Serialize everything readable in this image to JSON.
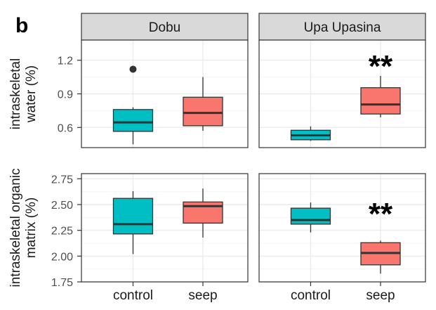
{
  "figure": {
    "panel_letter": "b",
    "facets": [
      "Dobu",
      "Upa Upasina"
    ],
    "row_labels": [
      [
        "intraskeletal",
        "water (%)"
      ],
      [
        "intraskeletal organic",
        "matrix (%)"
      ]
    ],
    "x_categories": [
      "control",
      "seep"
    ],
    "colors": {
      "control": "#00BFC4",
      "seep": "#F8766D",
      "strip": "#d9d9d9",
      "grid_major": "#ebebeb",
      "grid_minor": "#f5f5f5",
      "panel_border": "#333333"
    }
  },
  "chart_data": [
    {
      "type": "box",
      "row": "intraskeletal water (%)",
      "ylim": [
        0.42,
        1.38
      ],
      "yticks": [
        0.6,
        0.9,
        1.2
      ],
      "yticklabels": [
        "0.6",
        "0.9",
        "1.2"
      ],
      "facets": [
        {
          "name": "Dobu",
          "annotation": "",
          "boxes": [
            {
              "group": "control",
              "min": 0.45,
              "q1": 0.565,
              "median": 0.645,
              "q3": 0.76,
              "max": 0.78,
              "outliers": [
                1.12
              ]
            },
            {
              "group": "seep",
              "min": 0.57,
              "q1": 0.615,
              "median": 0.73,
              "q3": 0.87,
              "max": 1.05,
              "outliers": []
            }
          ]
        },
        {
          "name": "Upa Upasina",
          "annotation": "**",
          "boxes": [
            {
              "group": "control",
              "min": 0.48,
              "q1": 0.49,
              "median": 0.53,
              "q3": 0.575,
              "max": 0.61,
              "outliers": []
            },
            {
              "group": "seep",
              "min": 0.69,
              "q1": 0.72,
              "median": 0.805,
              "q3": 0.955,
              "max": 1.06,
              "outliers": []
            }
          ]
        }
      ]
    },
    {
      "type": "box",
      "row": "intraskeletal organic matrix (%)",
      "ylim": [
        1.75,
        2.8
      ],
      "yticks": [
        1.75,
        2.0,
        2.25,
        2.5,
        2.75
      ],
      "yticklabels": [
        "1.75",
        "2.00",
        "2.25",
        "2.50",
        "2.75"
      ],
      "facets": [
        {
          "name": "Dobu",
          "annotation": "",
          "boxes": [
            {
              "group": "control",
              "min": 2.02,
              "q1": 2.215,
              "median": 2.31,
              "q3": 2.56,
              "max": 2.63,
              "outliers": []
            },
            {
              "group": "seep",
              "min": 2.18,
              "q1": 2.32,
              "median": 2.485,
              "q3": 2.525,
              "max": 2.655,
              "outliers": []
            }
          ]
        },
        {
          "name": "Upa Upasina",
          "annotation": "**",
          "boxes": [
            {
              "group": "control",
              "min": 2.23,
              "q1": 2.31,
              "median": 2.35,
              "q3": 2.465,
              "max": 2.52,
              "outliers": []
            },
            {
              "group": "seep",
              "min": 1.83,
              "q1": 1.915,
              "median": 2.03,
              "q3": 2.13,
              "max": 2.15,
              "outliers": []
            }
          ]
        }
      ]
    }
  ]
}
